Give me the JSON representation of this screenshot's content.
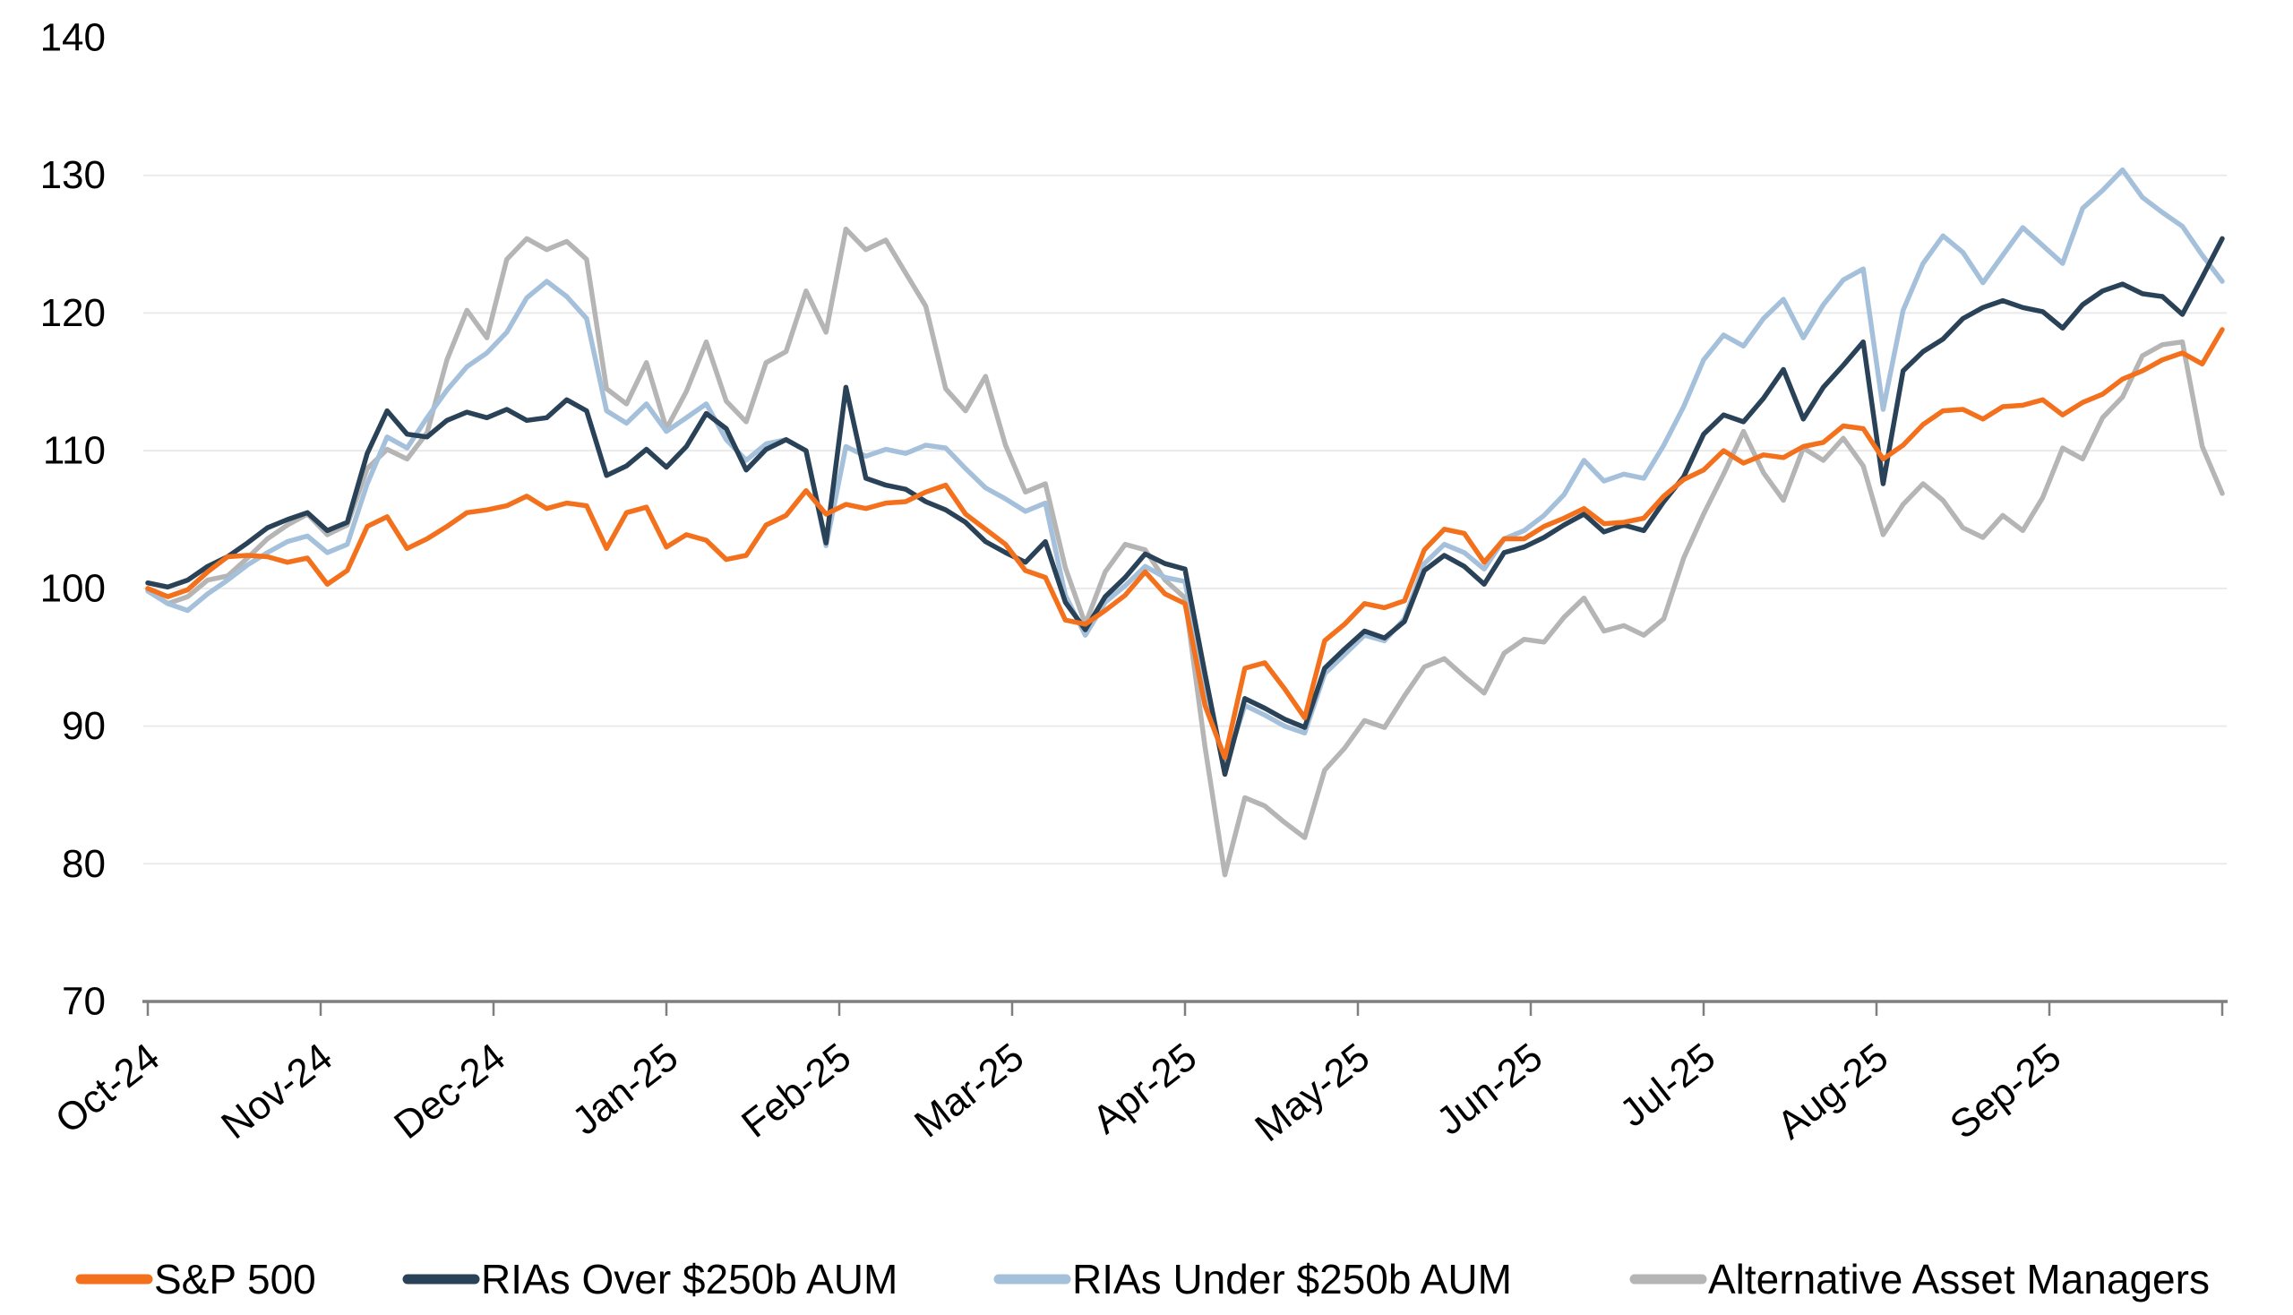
{
  "chart_data": {
    "type": "line",
    "title": "",
    "xlabel": "",
    "ylabel": "",
    "ylim": [
      70,
      140
    ],
    "y_ticks": [
      140,
      130,
      120,
      110,
      100,
      90,
      80,
      70
    ],
    "y_gridlines": [
      130,
      120,
      110,
      100,
      90,
      80
    ],
    "x_tick_labels": [
      "Oct-24",
      "Nov-24",
      "Dec-24",
      "Jan-25",
      "Feb-25",
      "Mar-25",
      "Apr-25",
      "May-25",
      "Jun-25",
      "Jul-25",
      "Aug-25",
      "Sep-25"
    ],
    "x_range_days": 364,
    "sample_interval_days": 3.5,
    "grid": "horizontal",
    "grid_color": "#EAEAEA",
    "axis_color": "#7F7F7F",
    "legend_position": "bottom",
    "series": [
      {
        "name": "S&P 500",
        "color": "#F3711D",
        "values": [
          100.0,
          99.4,
          99.9,
          101.2,
          102.3,
          102.4,
          102.3,
          101.9,
          102.2,
          100.3,
          101.3,
          104.5,
          105.2,
          102.9,
          103.6,
          104.5,
          105.5,
          105.7,
          106.0,
          106.7,
          105.8,
          106.2,
          106.0,
          102.9,
          105.5,
          105.9,
          103.0,
          103.9,
          103.5,
          102.1,
          102.4,
          104.6,
          105.3,
          107.1,
          105.4,
          106.1,
          105.8,
          106.2,
          106.3,
          107.0,
          107.5,
          105.4,
          104.3,
          103.2,
          101.3,
          100.8,
          97.7,
          97.4,
          98.4,
          99.5,
          101.2,
          99.6,
          98.9,
          91.5,
          87.7,
          94.2,
          94.6,
          92.7,
          90.6,
          96.2,
          97.4,
          98.9,
          98.6,
          99.1,
          102.8,
          104.3,
          104.0,
          101.9,
          103.6,
          103.6,
          104.5,
          105.1,
          105.8,
          104.7,
          104.8,
          105.1,
          106.7,
          107.9,
          108.6,
          110.0,
          109.1,
          109.7,
          109.5,
          110.3,
          110.6,
          111.8,
          111.6,
          109.4,
          110.4,
          111.9,
          112.9,
          113.0,
          112.3,
          113.2,
          113.3,
          113.7,
          112.6,
          113.5,
          114.1,
          115.2,
          115.8,
          116.6,
          117.1,
          116.3,
          118.8
        ]
      },
      {
        "name": "RIAs Over $250b AUM",
        "color": "#2A4257",
        "values": [
          100.4,
          100.1,
          100.6,
          101.6,
          102.3,
          103.3,
          104.4,
          105.0,
          105.5,
          104.2,
          104.8,
          109.8,
          112.9,
          111.2,
          111.0,
          112.2,
          112.8,
          112.4,
          113.0,
          112.2,
          112.4,
          113.7,
          112.9,
          108.2,
          108.9,
          110.1,
          108.8,
          110.3,
          112.7,
          111.6,
          108.6,
          110.1,
          110.8,
          110.0,
          103.3,
          114.6,
          108.0,
          107.5,
          107.2,
          106.3,
          105.7,
          104.8,
          103.4,
          102.6,
          101.9,
          103.4,
          99.0,
          97.0,
          99.4,
          100.8,
          102.5,
          101.8,
          101.4,
          93.8,
          86.5,
          92.0,
          91.3,
          90.5,
          89.9,
          94.2,
          95.6,
          96.9,
          96.4,
          97.6,
          101.3,
          102.4,
          101.6,
          100.3,
          102.6,
          103.0,
          103.7,
          104.6,
          105.4,
          104.1,
          104.6,
          104.2,
          106.3,
          108.1,
          111.2,
          112.6,
          112.1,
          113.8,
          115.9,
          112.3,
          114.6,
          116.2,
          117.9,
          107.6,
          115.8,
          117.2,
          118.1,
          119.6,
          120.4,
          120.9,
          120.4,
          120.1,
          118.9,
          120.6,
          121.6,
          122.1,
          121.4,
          121.2,
          119.9,
          122.6,
          125.4
        ]
      },
      {
        "name": "RIAs Under $250b AUM",
        "color": "#A5C0DB",
        "values": [
          99.8,
          98.9,
          98.4,
          99.6,
          100.6,
          101.7,
          102.6,
          103.4,
          103.8,
          102.6,
          103.2,
          107.6,
          111.0,
          110.2,
          112.4,
          114.4,
          116.1,
          117.1,
          118.6,
          121.1,
          122.3,
          121.2,
          119.6,
          112.9,
          112.0,
          113.4,
          111.4,
          112.4,
          113.4,
          110.8,
          109.3,
          110.5,
          110.8,
          110.0,
          103.1,
          110.3,
          109.6,
          110.1,
          109.8,
          110.4,
          110.2,
          108.7,
          107.3,
          106.5,
          105.6,
          106.2,
          99.5,
          96.6,
          99.0,
          100.2,
          101.6,
          100.8,
          100.5,
          93.0,
          87.0,
          91.5,
          90.8,
          90.0,
          89.5,
          93.8,
          95.2,
          96.6,
          96.2,
          97.8,
          101.8,
          103.2,
          102.6,
          101.4,
          103.6,
          104.2,
          105.3,
          106.8,
          109.3,
          107.8,
          108.3,
          108.0,
          110.4,
          113.2,
          116.6,
          118.4,
          117.6,
          119.6,
          121.0,
          118.2,
          120.6,
          122.4,
          123.2,
          113.0,
          120.2,
          123.6,
          125.6,
          124.4,
          122.2,
          124.2,
          126.2,
          124.9,
          123.6,
          127.6,
          128.9,
          130.4,
          128.4,
          127.3,
          126.3,
          124.2,
          122.3
        ]
      },
      {
        "name": "Alternative Asset Managers",
        "color": "#B5B5B5",
        "values": [
          99.9,
          98.9,
          99.4,
          100.6,
          100.9,
          102.2,
          103.6,
          104.6,
          105.4,
          103.9,
          104.6,
          108.7,
          110.1,
          109.4,
          111.3,
          116.6,
          120.2,
          118.2,
          123.9,
          125.4,
          124.6,
          125.2,
          123.9,
          114.5,
          113.4,
          116.4,
          111.6,
          114.3,
          117.9,
          113.6,
          112.1,
          116.4,
          117.2,
          121.6,
          118.6,
          126.1,
          124.6,
          125.3,
          122.9,
          120.5,
          114.5,
          112.9,
          115.4,
          110.4,
          107.0,
          107.6,
          101.5,
          97.4,
          101.2,
          103.2,
          102.8,
          100.6,
          99.3,
          88.5,
          79.2,
          84.8,
          84.2,
          83.0,
          81.9,
          86.8,
          88.4,
          90.4,
          89.9,
          92.2,
          94.3,
          94.9,
          93.6,
          92.4,
          95.3,
          96.3,
          96.1,
          97.9,
          99.3,
          96.9,
          97.3,
          96.6,
          97.8,
          102.2,
          105.4,
          108.3,
          111.4,
          108.4,
          106.4,
          110.2,
          109.3,
          110.9,
          108.9,
          103.9,
          106.1,
          107.6,
          106.4,
          104.4,
          103.7,
          105.3,
          104.2,
          106.6,
          110.2,
          109.4,
          112.4,
          113.9,
          116.9,
          117.7,
          117.9,
          110.3,
          106.9
        ]
      }
    ]
  }
}
